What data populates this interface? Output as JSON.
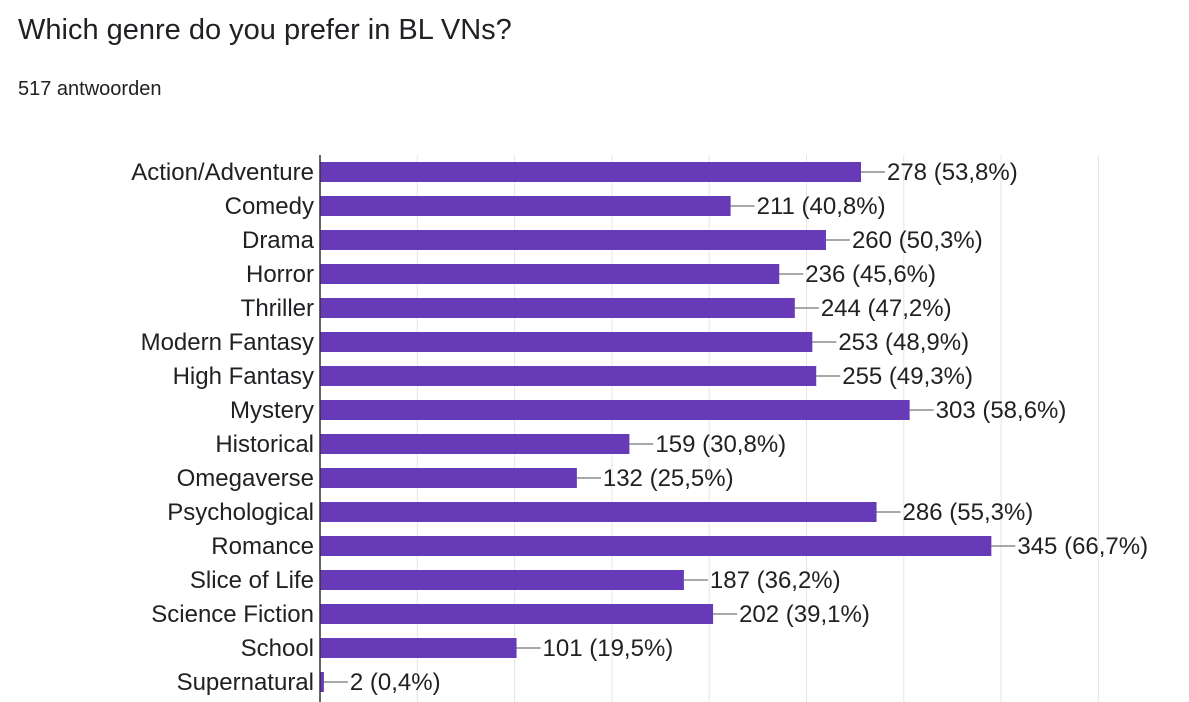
{
  "title": "Which genre do you prefer in BL VNs?",
  "subtitle": "517 antwoorden",
  "colors": {
    "bar": "#673ab7",
    "grid": "#e5e5e5",
    "axis": "#333333",
    "connector": "#757575",
    "text": "#202124"
  },
  "chart_data": {
    "type": "bar",
    "orientation": "horizontal",
    "categories": [
      "Action/Adventure",
      "Comedy",
      "Drama",
      "Horror",
      "Thriller",
      "Modern Fantasy",
      "High Fantasy",
      "Mystery",
      "Historical",
      "Omegaverse",
      "Psychological",
      "Romance",
      "Slice of Life",
      "Science Fiction",
      "School",
      "Supernatural"
    ],
    "values": [
      278,
      211,
      260,
      236,
      244,
      253,
      255,
      303,
      159,
      132,
      286,
      345,
      187,
      202,
      101,
      2
    ],
    "data_labels": [
      "278 (53,8%)",
      "211 (40,8%)",
      "260 (50,3%)",
      "236 (45,6%)",
      "244 (47,2%)",
      "253 (48,9%)",
      "255 (49,3%)",
      "303 (58,6%)",
      "159 (30,8%)",
      "132 (25,5%)",
      "286 (55,3%)",
      "345 (66,7%)",
      "187 (36,2%)",
      "202 (39,1%)",
      "101 (19,5%)",
      "2 (0,4%)"
    ],
    "xlim": [
      0,
      400
    ],
    "grid": true,
    "legend": "none"
  }
}
